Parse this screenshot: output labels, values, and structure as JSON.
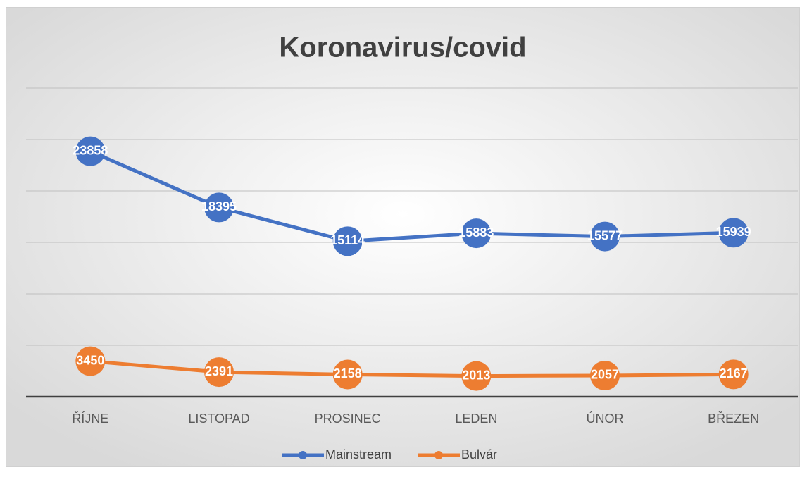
{
  "chart_data": {
    "type": "line",
    "title": "Koronavirus/covid",
    "categories": [
      "ŘÍJNE",
      "LISTOPAD",
      "PROSINEC",
      "LEDEN",
      "ÚNOR",
      "BŘEZEN"
    ],
    "series": [
      {
        "name": "Mainstream",
        "color": "#4472c4",
        "values": [
          23858,
          18395,
          15114,
          15883,
          15577,
          15939
        ]
      },
      {
        "name": "Bulvár",
        "color": "#ed7d31",
        "values": [
          3450,
          2391,
          2158,
          2013,
          2057,
          2167
        ]
      }
    ],
    "ylim": [
      0,
      30000
    ],
    "yticks": [
      0,
      5000,
      10000,
      15000,
      20000,
      25000,
      30000
    ],
    "grid": true,
    "legend": "bottom"
  }
}
